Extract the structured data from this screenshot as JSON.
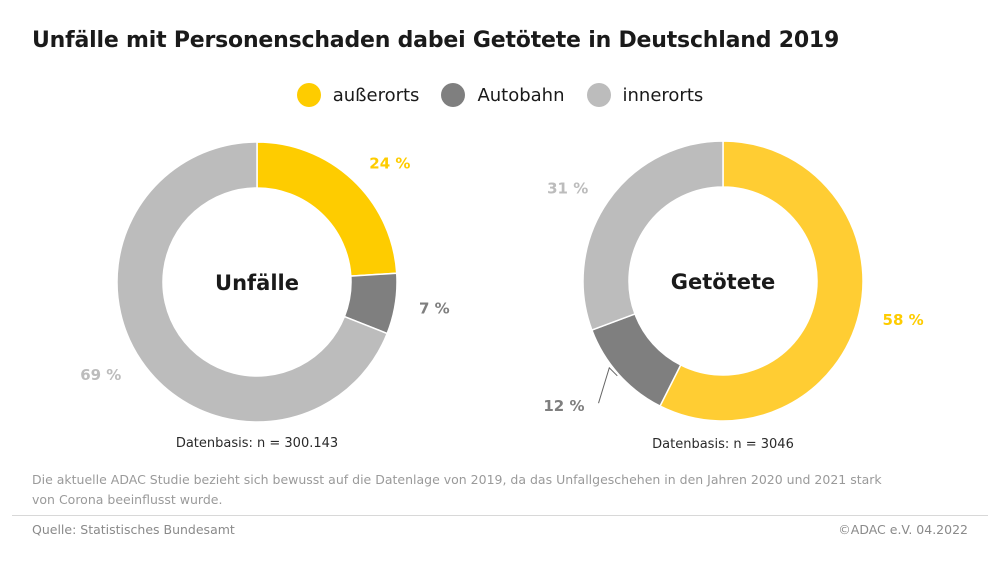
{
  "title": "Unfälle mit Personenschaden dabei Getötete in Deutschland 2019",
  "legend": [
    {
      "label": "außerorts",
      "color": "#fecc00"
    },
    {
      "label": "Autobahn",
      "color": "#7f7f7f"
    },
    {
      "label": "innerorts",
      "color": "#bcbcbc"
    }
  ],
  "chart_data": [
    {
      "type": "pie",
      "center_label": "Unfälle",
      "categories": [
        "außerorts",
        "Autobahn",
        "innerorts"
      ],
      "values": [
        24,
        7,
        69
      ],
      "value_labels": [
        "24 %",
        "7 %",
        "69 %"
      ],
      "colors": [
        "#fecc00",
        "#7f7f7f",
        "#bcbcbc"
      ],
      "label_colors": [
        "#fecc00",
        "#7f7f7f",
        "#bcbcbc"
      ],
      "basis": "Datenbasis: n = 300.143"
    },
    {
      "type": "pie",
      "center_label": "Getötete",
      "categories": [
        "außerorts",
        "Autobahn",
        "innerorts"
      ],
      "values": [
        58,
        12,
        31
      ],
      "value_labels": [
        "58 %",
        "12 %",
        "31 %"
      ],
      "colors": [
        "#ffcd33",
        "#7f7f7f",
        "#bcbcbc"
      ],
      "label_colors": [
        "#fecc00",
        "#7f7f7f",
        "#bcbcbc"
      ],
      "basis": "Datenbasis: n = 3046"
    }
  ],
  "note": "Die aktuelle ADAC Studie bezieht sich bewusst auf die Datenlage von 2019, da das Unfallgeschehen in den Jahren 2020 und 2021 stark von Corona beeinflusst wurde.",
  "source": "Quelle: Statistisches Bundesamt",
  "copyright": "©ADAC e.V.  04.2022"
}
